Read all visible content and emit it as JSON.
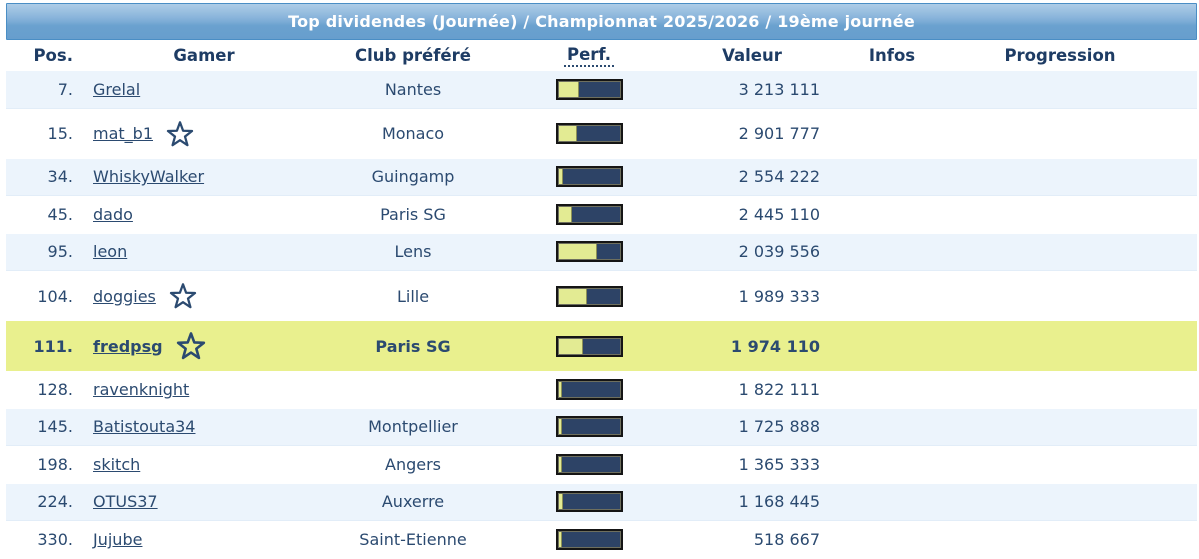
{
  "title": "Top dividendes (Journée) / Championnat 2025/2026 / 19ème journée",
  "columns": {
    "pos": "Pos.",
    "gamer": "Gamer",
    "club": "Club préféré",
    "perf": "Perf.",
    "valeur": "Valeur",
    "infos": "Infos",
    "progression": "Progression"
  },
  "colors": {
    "banner_top": "#8ab5db",
    "banner_bottom": "#679ecd",
    "banner_border": "#4a8ec5",
    "row_alt": "#ecf4fc",
    "row_highlight": "#e9f08e",
    "text": "#2b4a70",
    "header_text": "#1e3c64",
    "bar_track": "#2d4366",
    "bar_fill": "#e3eb93",
    "bar_border": "#151515"
  },
  "icons": {
    "star": "star-outline-icon"
  },
  "rows": [
    {
      "pos": "7.",
      "gamer": "Grelal",
      "club": "Nantes",
      "perf_pct": 33,
      "valeur": "3 213 111",
      "has_star": false,
      "highlight": false
    },
    {
      "pos": "15.",
      "gamer": "mat_b1",
      "club": "Monaco",
      "perf_pct": 30,
      "valeur": "2 901 777",
      "has_star": true,
      "highlight": false
    },
    {
      "pos": "34.",
      "gamer": "WhiskyWalker",
      "club": "Guingamp",
      "perf_pct": 8,
      "valeur": "2 554 222",
      "has_star": false,
      "highlight": false
    },
    {
      "pos": "45.",
      "gamer": "dado",
      "club": "Paris SG",
      "perf_pct": 22,
      "valeur": "2 445 110",
      "has_star": false,
      "highlight": false
    },
    {
      "pos": "95.",
      "gamer": "leon",
      "club": "Lens",
      "perf_pct": 63,
      "valeur": "2 039 556",
      "has_star": false,
      "highlight": false
    },
    {
      "pos": "104.",
      "gamer": "doggies",
      "club": "Lille",
      "perf_pct": 46,
      "valeur": "1 989 333",
      "has_star": true,
      "highlight": false
    },
    {
      "pos": "111.",
      "gamer": "fredpsg",
      "club": "Paris SG",
      "perf_pct": 40,
      "valeur": "1 974 110",
      "has_star": true,
      "highlight": true
    },
    {
      "pos": "128.",
      "gamer": "ravenknight",
      "club": "",
      "perf_pct": 5,
      "valeur": "1 822 111",
      "has_star": false,
      "highlight": false
    },
    {
      "pos": "145.",
      "gamer": "Batistouta34",
      "club": "Montpellier",
      "perf_pct": 5,
      "valeur": "1 725 888",
      "has_star": false,
      "highlight": false
    },
    {
      "pos": "198.",
      "gamer": "skitch",
      "club": "Angers",
      "perf_pct": 5,
      "valeur": "1 365 333",
      "has_star": false,
      "highlight": false
    },
    {
      "pos": "224.",
      "gamer": "OTUS37",
      "club": "Auxerre",
      "perf_pct": 7,
      "valeur": "1 168 445",
      "has_star": false,
      "highlight": false
    },
    {
      "pos": "330.",
      "gamer": "Jujube",
      "club": "Saint-Etienne",
      "perf_pct": 5,
      "valeur": "518 667",
      "has_star": false,
      "highlight": false
    }
  ]
}
